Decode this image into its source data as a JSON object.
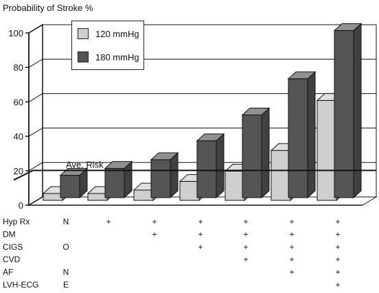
{
  "chart_data": {
    "type": "bar",
    "title": "Probability of Stroke %",
    "ylim": [
      0,
      100
    ],
    "yticks": [
      0,
      20,
      40,
      60,
      80,
      100
    ],
    "grid": true,
    "legend_position": "top-left",
    "series": [
      {
        "name": "120 mmHg",
        "color": "#cfcfcf",
        "values": [
          4,
          4,
          6,
          11,
          17,
          29,
          58
        ]
      },
      {
        "name": "180 mmHg",
        "color": "#555555",
        "values": [
          13,
          17,
          22,
          33,
          48,
          69,
          97
        ]
      }
    ],
    "annotation": {
      "label": "Ave. Risk",
      "value": 17
    },
    "risk_factor_rows": [
      {
        "label": "Hyp Rx",
        "marks": [
          "N",
          "+",
          "+",
          "+",
          "+",
          "+",
          "+"
        ]
      },
      {
        "label": "DM",
        "marks": [
          "",
          "",
          "+",
          "+",
          "+",
          "+",
          "+"
        ]
      },
      {
        "label": "CIGS",
        "marks": [
          "O",
          "",
          "",
          "+",
          "+",
          "+",
          "+"
        ]
      },
      {
        "label": "CVD",
        "marks": [
          "",
          "",
          "",
          "",
          "+",
          "+",
          "+"
        ]
      },
      {
        "label": "AF",
        "marks": [
          "N",
          "",
          "",
          "",
          "",
          "+",
          "+"
        ]
      },
      {
        "label": "LVH-ECG",
        "marks": [
          "E",
          "",
          "",
          "",
          "",
          "",
          "+"
        ]
      }
    ]
  }
}
